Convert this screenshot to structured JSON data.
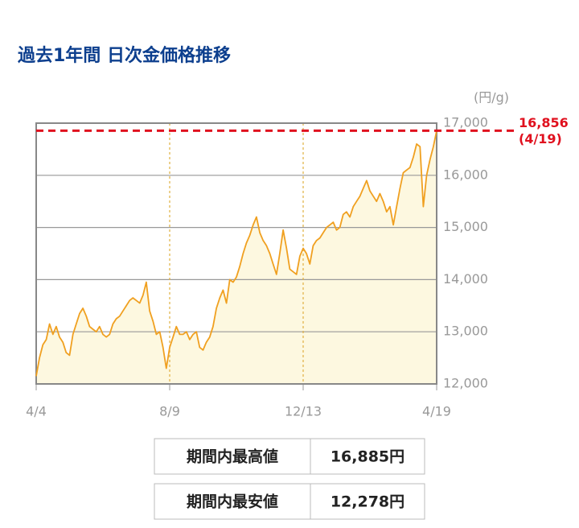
{
  "chart_data": {
    "type": "line",
    "title": "過去1年間 日次金価格推移",
    "y_unit": "(円/g)",
    "categories": [
      "4/4",
      null,
      null,
      null,
      null,
      null,
      null,
      null,
      null,
      null,
      null,
      null,
      null,
      null,
      null,
      null,
      null,
      null,
      null,
      null,
      null,
      null,
      null,
      null,
      null,
      null,
      null,
      null,
      null,
      null,
      null,
      null,
      null,
      null,
      null,
      null,
      null,
      null,
      null,
      null,
      "8/9",
      null,
      null,
      null,
      null,
      null,
      null,
      null,
      null,
      null,
      null,
      null,
      null,
      null,
      null,
      null,
      null,
      null,
      null,
      null,
      null,
      null,
      null,
      null,
      null,
      null,
      null,
      null,
      null,
      null,
      null,
      null,
      null,
      null,
      null,
      null,
      null,
      null,
      null,
      null,
      "12/13",
      null,
      null,
      null,
      null,
      null,
      null,
      null,
      null,
      null,
      null,
      null,
      null,
      null,
      null,
      null,
      null,
      null,
      null,
      null,
      null,
      null,
      null,
      null,
      null,
      null,
      null,
      null,
      null,
      null,
      null,
      null,
      null,
      null,
      null,
      null,
      null,
      null,
      null,
      null,
      "4/19"
    ],
    "values": [
      12150,
      12500,
      12750,
      12850,
      13150,
      12950,
      13100,
      12900,
      12800,
      12600,
      12550,
      12950,
      13150,
      13350,
      13450,
      13300,
      13100,
      13050,
      13000,
      13100,
      12950,
      12900,
      12950,
      13150,
      13250,
      13300,
      13400,
      13500,
      13600,
      13650,
      13600,
      13550,
      13700,
      13950,
      13400,
      13200,
      12950,
      13000,
      12700,
      12300,
      12700,
      12900,
      13100,
      12950,
      12950,
      13000,
      12850,
      12950,
      13000,
      12700,
      12650,
      12800,
      12900,
      13100,
      13450,
      13650,
      13800,
      13550,
      14000,
      13950,
      14050,
      14250,
      14500,
      14700,
      14850,
      15050,
      15200,
      14900,
      14750,
      14650,
      14500,
      14300,
      14100,
      14500,
      14950,
      14600,
      14200,
      14150,
      14100,
      14450,
      14600,
      14500,
      14300,
      14650,
      14750,
      14800,
      14900,
      15000,
      15050,
      15100,
      14950,
      15000,
      15250,
      15300,
      15200,
      15400,
      15500,
      15600,
      15750,
      15900,
      15700,
      15600,
      15500,
      15650,
      15500,
      15300,
      15400,
      15050,
      15400,
      15750,
      16050,
      16100,
      16150,
      16350,
      16600,
      16550,
      15400,
      16000,
      16300,
      16550,
      16856
    ],
    "color": "#f0a020",
    "fill_color": "#fdf8e0",
    "ylim": [
      12000,
      17000
    ],
    "yticks": [
      {
        "value": 12000,
        "label": "12,000"
      },
      {
        "value": 13000,
        "label": "13,000"
      },
      {
        "value": 14000,
        "label": "14,000"
      },
      {
        "value": 15000,
        "label": "15,000"
      },
      {
        "value": 16000,
        "label": "16,000"
      },
      {
        "value": 17000,
        "label": "17,000"
      }
    ],
    "grid": true,
    "reference_line": {
      "value": 16856,
      "label": "16,856",
      "note": "(4/19)",
      "color": "#e0101e"
    }
  },
  "table": {
    "rows": [
      [
        "期間内最高値",
        "16,885円"
      ],
      [
        "期間内最安値",
        "12,278円"
      ]
    ]
  }
}
